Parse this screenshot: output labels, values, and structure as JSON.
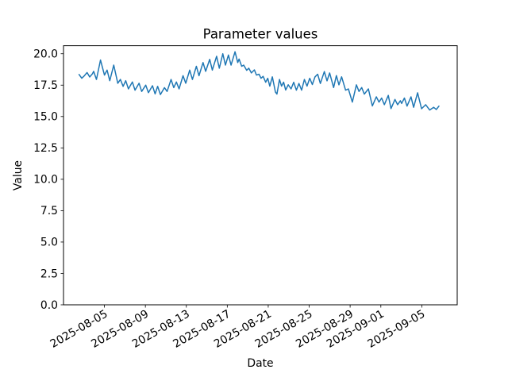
{
  "figure": {
    "background_color": "#ffffff",
    "axes_edge_color": "#000000",
    "tick_color": "#000000"
  },
  "chart_data": {
    "type": "line",
    "title": "Parameter values",
    "xlabel": "Date",
    "ylabel": "Value",
    "grid": false,
    "legend": null,
    "x_unit": "days since 2025-08-05",
    "xlim": [
      -4.0,
      34.46
    ],
    "ylim": [
      0,
      20.64
    ],
    "x_ticks": [
      {
        "day": 0,
        "label": "2025-08-05"
      },
      {
        "day": 4,
        "label": "2025-08-09"
      },
      {
        "day": 8,
        "label": "2025-08-13"
      },
      {
        "day": 12,
        "label": "2025-08-17"
      },
      {
        "day": 16,
        "label": "2025-08-21"
      },
      {
        "day": 20,
        "label": "2025-08-25"
      },
      {
        "day": 24,
        "label": "2025-08-29"
      },
      {
        "day": 27,
        "label": "2025-09-01"
      },
      {
        "day": 31,
        "label": "2025-09-05"
      }
    ],
    "x_tick_label_rotation_deg": 30,
    "y_ticks": [
      {
        "value": 0.0,
        "label": "0.0"
      },
      {
        "value": 2.5,
        "label": "2.5"
      },
      {
        "value": 5.0,
        "label": "5.0"
      },
      {
        "value": 7.5,
        "label": "7.5"
      },
      {
        "value": 10.0,
        "label": "10.0"
      },
      {
        "value": 12.5,
        "label": "12.5"
      },
      {
        "value": 15.0,
        "label": "15.0"
      },
      {
        "value": 17.5,
        "label": "17.5"
      },
      {
        "value": 20.0,
        "label": "20.0"
      }
    ],
    "series": [
      {
        "color": "#1f77b4",
        "line_width": 1.5,
        "points": [
          [
            -2.48,
            18.35
          ],
          [
            -2.22,
            18.05
          ],
          [
            -1.96,
            18.25
          ],
          [
            -1.7,
            18.5
          ],
          [
            -1.44,
            18.15
          ],
          [
            -1.18,
            18.4
          ],
          [
            -1.05,
            18.6
          ],
          [
            -0.78,
            17.95
          ],
          [
            -0.39,
            19.5
          ],
          [
            0.0,
            18.3
          ],
          [
            0.26,
            18.7
          ],
          [
            0.52,
            17.85
          ],
          [
            0.91,
            19.1
          ],
          [
            1.3,
            17.65
          ],
          [
            1.56,
            17.95
          ],
          [
            1.82,
            17.4
          ],
          [
            2.08,
            17.85
          ],
          [
            2.34,
            17.2
          ],
          [
            2.73,
            17.75
          ],
          [
            2.99,
            17.1
          ],
          [
            3.38,
            17.65
          ],
          [
            3.64,
            17.0
          ],
          [
            4.03,
            17.5
          ],
          [
            4.3,
            16.9
          ],
          [
            4.69,
            17.45
          ],
          [
            4.95,
            16.8
          ],
          [
            5.2,
            17.4
          ],
          [
            5.47,
            16.75
          ],
          [
            5.86,
            17.3
          ],
          [
            6.12,
            17.0
          ],
          [
            6.51,
            17.95
          ],
          [
            6.77,
            17.3
          ],
          [
            7.03,
            17.75
          ],
          [
            7.29,
            17.2
          ],
          [
            7.68,
            18.25
          ],
          [
            7.94,
            17.65
          ],
          [
            8.33,
            18.7
          ],
          [
            8.59,
            17.95
          ],
          [
            8.98,
            19.0
          ],
          [
            9.24,
            18.25
          ],
          [
            9.63,
            19.3
          ],
          [
            9.89,
            18.6
          ],
          [
            10.28,
            19.55
          ],
          [
            10.54,
            18.7
          ],
          [
            10.96,
            19.8
          ],
          [
            11.22,
            18.85
          ],
          [
            11.56,
            20.0
          ],
          [
            11.82,
            19.1
          ],
          [
            12.11,
            19.9
          ],
          [
            12.37,
            19.1
          ],
          [
            12.76,
            20.16
          ],
          [
            13.02,
            19.3
          ],
          [
            13.15,
            19.58
          ],
          [
            13.41,
            19.0
          ],
          [
            13.6,
            19.1
          ],
          [
            13.9,
            18.68
          ],
          [
            14.1,
            18.85
          ],
          [
            14.35,
            18.47
          ],
          [
            14.65,
            18.72
          ],
          [
            14.85,
            18.3
          ],
          [
            15.1,
            18.37
          ],
          [
            15.3,
            18.05
          ],
          [
            15.5,
            18.2
          ],
          [
            15.75,
            17.73
          ],
          [
            15.95,
            18.05
          ],
          [
            16.15,
            17.42
          ],
          [
            16.4,
            18.16
          ],
          [
            16.7,
            16.95
          ],
          [
            16.85,
            16.79
          ],
          [
            17.1,
            17.95
          ],
          [
            17.3,
            17.42
          ],
          [
            17.5,
            17.74
          ],
          [
            17.7,
            17.11
          ],
          [
            17.95,
            17.53
          ],
          [
            18.23,
            17.2
          ],
          [
            18.49,
            17.73
          ],
          [
            18.75,
            17.1
          ],
          [
            19.0,
            17.63
          ],
          [
            19.26,
            17.1
          ],
          [
            19.53,
            17.95
          ],
          [
            19.79,
            17.42
          ],
          [
            20.05,
            18.05
          ],
          [
            20.31,
            17.55
          ],
          [
            20.57,
            18.16
          ],
          [
            20.83,
            18.37
          ],
          [
            21.09,
            17.63
          ],
          [
            21.48,
            18.58
          ],
          [
            21.74,
            17.84
          ],
          [
            22.0,
            18.47
          ],
          [
            22.39,
            17.31
          ],
          [
            22.66,
            18.26
          ],
          [
            22.91,
            17.52
          ],
          [
            23.17,
            18.16
          ],
          [
            23.56,
            17.1
          ],
          [
            23.83,
            17.2
          ],
          [
            24.22,
            16.15
          ],
          [
            24.61,
            17.52
          ],
          [
            24.87,
            17.0
          ],
          [
            25.13,
            17.31
          ],
          [
            25.39,
            16.78
          ],
          [
            25.78,
            17.2
          ],
          [
            26.17,
            15.84
          ],
          [
            26.56,
            16.57
          ],
          [
            26.82,
            16.15
          ],
          [
            27.08,
            16.47
          ],
          [
            27.34,
            15.94
          ],
          [
            27.73,
            16.68
          ],
          [
            27.99,
            15.63
          ],
          [
            28.38,
            16.36
          ],
          [
            28.64,
            15.94
          ],
          [
            28.91,
            16.26
          ],
          [
            29.03,
            16.04
          ],
          [
            29.3,
            16.47
          ],
          [
            29.56,
            15.83
          ],
          [
            29.95,
            16.57
          ],
          [
            30.2,
            15.73
          ],
          [
            30.59,
            16.89
          ],
          [
            30.98,
            15.62
          ],
          [
            31.38,
            15.94
          ],
          [
            31.77,
            15.52
          ],
          [
            32.16,
            15.73
          ],
          [
            32.42,
            15.56
          ],
          [
            32.68,
            15.83
          ]
        ]
      }
    ]
  }
}
